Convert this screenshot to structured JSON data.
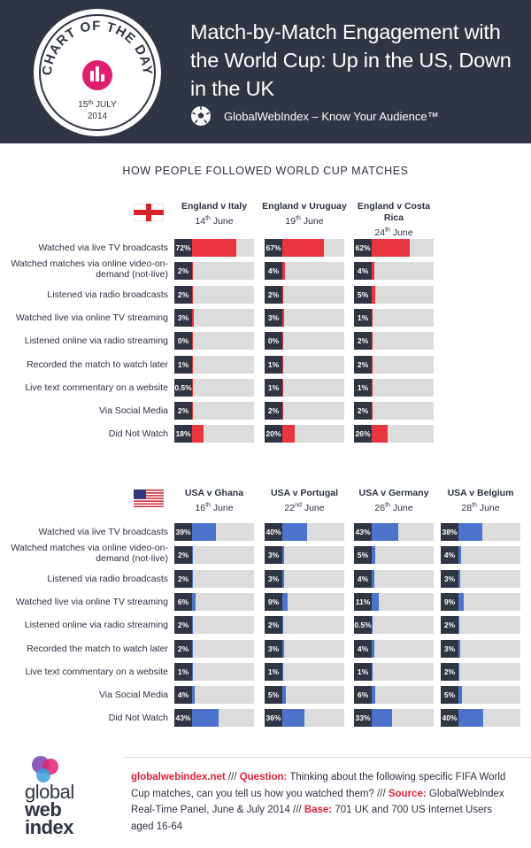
{
  "header": {
    "badge_top": "CHART OF THE DAY",
    "badge_date_day": "15",
    "badge_date_sup": "th",
    "badge_date_month": "JULY",
    "badge_year": "2014",
    "title": "Match-by-Match Engagement with the World Cup: Up in the US, Down in the UK",
    "brand": "GlobalWebIndex – Know Your Audience™"
  },
  "section_heading": "HOW PEOPLE FOLLOWED WORLD CUP MATCHES",
  "row_labels": [
    "Watched via live TV broadcasts",
    "Watched matches via online video-on-demand (not-live)",
    "Listened via radio broadcasts",
    "Watched live via online TV streaming",
    "Listened online via radio streaming",
    "Recorded the match to watch later",
    "Live text commentary on a website",
    "Via Social Media",
    "Did Not Watch"
  ],
  "chart_data": [
    {
      "type": "bar",
      "country": "England",
      "color": "#e8353f",
      "categories": [
        "Watched via live TV broadcasts",
        "Watched matches via online video-on-demand (not-live)",
        "Listened via radio broadcasts",
        "Watched live via online TV streaming",
        "Listened online via radio streaming",
        "Recorded the match to watch later",
        "Live text commentary on a website",
        "Via Social Media",
        "Did Not Watch"
      ],
      "series": [
        {
          "name": "England v Italy",
          "date_num": "14",
          "date_sup": "th",
          "date_month": "June",
          "values": [
            72,
            2,
            2,
            3,
            0,
            1,
            0.5,
            2,
            18
          ],
          "labels": [
            "72%",
            "2%",
            "2%",
            "3%",
            "0%",
            "1%",
            "0.5%",
            "2%",
            "18%"
          ]
        },
        {
          "name": "England v Uruguay",
          "date_num": "19",
          "date_sup": "th",
          "date_month": "June",
          "values": [
            67,
            4,
            2,
            3,
            0,
            1,
            1,
            2,
            20
          ],
          "labels": [
            "67%",
            "4%",
            "2%",
            "3%",
            "0%",
            "1%",
            "1%",
            "2%",
            "20%"
          ]
        },
        {
          "name": "England v Costa Rica",
          "date_num": "24",
          "date_sup": "th",
          "date_month": "June",
          "values": [
            62,
            4,
            5,
            1,
            2,
            2,
            1,
            2,
            26
          ],
          "labels": [
            "62%",
            "4%",
            "5%",
            "1%",
            "2%",
            "2%",
            "1%",
            "2%",
            "26%"
          ]
        }
      ]
    },
    {
      "type": "bar",
      "country": "USA",
      "color": "#4d74cc",
      "categories": [
        "Watched via live TV broadcasts",
        "Watched matches via online video-on-demand (not-live)",
        "Listened via radio broadcasts",
        "Watched live via online TV streaming",
        "Listened online via radio streaming",
        "Recorded the match to watch later",
        "Live text commentary on a website",
        "Via Social Media",
        "Did Not Watch"
      ],
      "series": [
        {
          "name": "USA v Ghana",
          "date_num": "16",
          "date_sup": "th",
          "date_month": "June",
          "values": [
            39,
            2,
            2,
            6,
            2,
            2,
            1,
            4,
            43
          ],
          "labels": [
            "39%",
            "2%",
            "2%",
            "6%",
            "2%",
            "2%",
            "1%",
            "4%",
            "43%"
          ]
        },
        {
          "name": "USA v Portugal",
          "date_num": "22",
          "date_sup": "nd",
          "date_month": "June",
          "values": [
            40,
            3,
            3,
            9,
            2,
            3,
            1,
            5,
            36
          ],
          "labels": [
            "40%",
            "3%",
            "3%",
            "9%",
            "2%",
            "3%",
            "1%",
            "5%",
            "36%"
          ]
        },
        {
          "name": "USA v Germany",
          "date_num": "26",
          "date_sup": "th",
          "date_month": "June",
          "values": [
            43,
            5,
            4,
            11,
            0.5,
            4,
            1,
            6,
            33
          ],
          "labels": [
            "43%",
            "5%",
            "4%",
            "11%",
            "0.5%",
            "4%",
            "1%",
            "6%",
            "33%"
          ]
        },
        {
          "name": "USA v Belgium",
          "date_num": "28",
          "date_sup": "th",
          "date_month": "June",
          "values": [
            38,
            4,
            3,
            9,
            2,
            3,
            2,
            5,
            40
          ],
          "labels": [
            "38%",
            "4%",
            "3%",
            "9%",
            "2%",
            "3%",
            "2%",
            "5%",
            "40%"
          ]
        }
      ]
    }
  ],
  "footer": {
    "logo_line1": "global",
    "logo_line2": "web",
    "logo_line3": "index",
    "link": "globalwebindex.net",
    "sep1": " /// ",
    "question_label": "Question:",
    "question_text": " Thinking about the following specific FIFA World Cup matches, can you tell us how you watched them? ",
    "sep2": "/// ",
    "source_label": "Source:",
    "source_text": " GlobalWebIndex Real-Time Panel, June & July 2014 ",
    "sep3": "/// ",
    "base_label": "Base:",
    "base_text": " 701 UK and 700 US Internet Users aged 16-64"
  }
}
